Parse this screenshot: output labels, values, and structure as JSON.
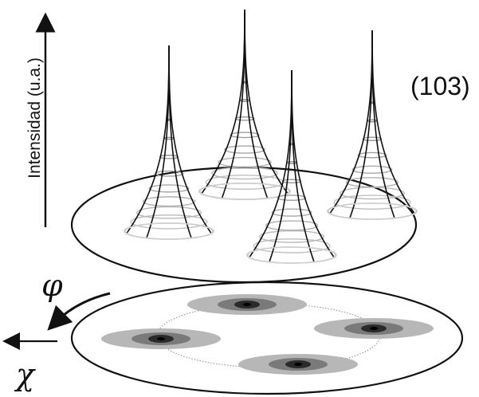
{
  "labels": {
    "y_axis": "Intensidad (u.a.)",
    "reflection": "(103)",
    "phi": "φ",
    "chi": "χ"
  },
  "peaks": [
    {
      "name": "peak-left"
    },
    {
      "name": "peak-center-back"
    },
    {
      "name": "peak-center-front"
    },
    {
      "name": "peak-right"
    }
  ],
  "spots": [
    {
      "name": "spot-top"
    },
    {
      "name": "spot-left"
    },
    {
      "name": "spot-right"
    },
    {
      "name": "spot-bottom"
    }
  ],
  "colors": {
    "line": "#111111",
    "ring": "#c8c8c8",
    "spot_outer": "#b7b7b7",
    "spot_mid": "#7a7a7a",
    "spot_inner": "#2a2a2a"
  }
}
